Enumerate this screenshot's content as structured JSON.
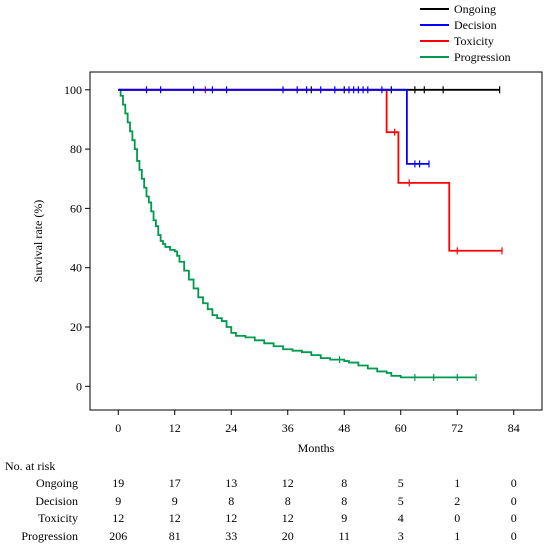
{
  "chart_data": {
    "type": "line",
    "subtype": "kaplan-meier",
    "title": "",
    "xlabel": "Months",
    "ylabel": "Survival rate (%)",
    "xlim": [
      -6,
      90
    ],
    "ylim": [
      -8,
      106
    ],
    "xticks": [
      0,
      12,
      24,
      36,
      48,
      60,
      72,
      84
    ],
    "yticks": [
      0,
      20,
      40,
      60,
      80,
      100
    ],
    "legend_position": "top-right",
    "series": [
      {
        "name": "Ongoing",
        "color": "#000000",
        "steps": [
          [
            0,
            100
          ],
          [
            81,
            100
          ]
        ],
        "censored": [
          [
            41,
            100
          ],
          [
            48,
            100
          ],
          [
            58,
            100
          ],
          [
            63,
            100
          ],
          [
            65,
            100
          ],
          [
            69,
            100
          ],
          [
            81,
            100
          ]
        ]
      },
      {
        "name": "Decision",
        "color": "#0000ff",
        "steps": [
          [
            0,
            100
          ],
          [
            61.3,
            100
          ],
          [
            61.3,
            75
          ],
          [
            66,
            75
          ]
        ],
        "censored": [
          [
            6,
            100
          ],
          [
            9,
            100
          ],
          [
            16,
            100
          ],
          [
            20,
            100
          ],
          [
            23,
            100
          ],
          [
            35,
            100
          ],
          [
            38,
            100
          ],
          [
            40,
            100
          ],
          [
            43,
            100
          ],
          [
            46,
            100
          ],
          [
            49,
            100
          ],
          [
            50,
            100
          ],
          [
            51,
            100
          ],
          [
            52,
            100
          ],
          [
            53,
            100
          ],
          [
            56,
            100
          ],
          [
            63,
            75
          ],
          [
            64,
            75
          ],
          [
            66,
            75
          ]
        ]
      },
      {
        "name": "Toxicity",
        "color": "#ff0000",
        "steps": [
          [
            0,
            100
          ],
          [
            57,
            100
          ],
          [
            57,
            85.7
          ],
          [
            59.5,
            85.7
          ],
          [
            59.5,
            68.6
          ],
          [
            70.3,
            68.6
          ],
          [
            70.3,
            45.7
          ],
          [
            81.5,
            45.7
          ]
        ],
        "censored": [
          [
            18.5,
            100
          ],
          [
            58.7,
            85.7
          ],
          [
            61.8,
            68.6
          ],
          [
            72,
            45.7
          ],
          [
            81.5,
            45.7
          ]
        ]
      },
      {
        "name": "Progression",
        "color": "#009a4e",
        "steps": [
          [
            0,
            100
          ],
          [
            0.5,
            98
          ],
          [
            1,
            95
          ],
          [
            1.5,
            92
          ],
          [
            2,
            89
          ],
          [
            2.5,
            86
          ],
          [
            3,
            83
          ],
          [
            3.5,
            80
          ],
          [
            4,
            76
          ],
          [
            4.5,
            73
          ],
          [
            5,
            70
          ],
          [
            5.5,
            67
          ],
          [
            6,
            64
          ],
          [
            6.5,
            62
          ],
          [
            7,
            59
          ],
          [
            7.5,
            56
          ],
          [
            8,
            54
          ],
          [
            8.5,
            51
          ],
          [
            9,
            49
          ],
          [
            9.5,
            48
          ],
          [
            10,
            47
          ],
          [
            11,
            46
          ],
          [
            12,
            45.5
          ],
          [
            12.5,
            44
          ],
          [
            13,
            42
          ],
          [
            14,
            39
          ],
          [
            15,
            36
          ],
          [
            16,
            33
          ],
          [
            17,
            30
          ],
          [
            18,
            28
          ],
          [
            19,
            26
          ],
          [
            20,
            24
          ],
          [
            21,
            23
          ],
          [
            22,
            22
          ],
          [
            23,
            20
          ],
          [
            24,
            18
          ],
          [
            25,
            17
          ],
          [
            27,
            16.5
          ],
          [
            29,
            15.5
          ],
          [
            31,
            14.5
          ],
          [
            33,
            13.5
          ],
          [
            35,
            12.5
          ],
          [
            37,
            12
          ],
          [
            39,
            11.5
          ],
          [
            41,
            10.5
          ],
          [
            43,
            9.5
          ],
          [
            45,
            9
          ],
          [
            47,
            9
          ],
          [
            48,
            8.5
          ],
          [
            49,
            8
          ],
          [
            51,
            7
          ],
          [
            53,
            6
          ],
          [
            55,
            5
          ],
          [
            57,
            4.5
          ],
          [
            58,
            3.5
          ],
          [
            60,
            3
          ],
          [
            63,
            3
          ],
          [
            76,
            3
          ]
        ],
        "censored": [
          [
            47,
            9
          ],
          [
            63,
            3
          ],
          [
            67,
            3
          ],
          [
            72,
            3
          ],
          [
            76,
            3
          ]
        ]
      }
    ]
  },
  "risk_table": {
    "title": "No. at risk",
    "times": [
      0,
      12,
      24,
      36,
      48,
      60,
      72,
      84
    ],
    "rows": [
      {
        "label": "Ongoing",
        "values": [
          "19",
          "17",
          "13",
          "12",
          "8",
          "5",
          "1",
          "0"
        ]
      },
      {
        "label": "Decision",
        "values": [
          "9",
          "9",
          "8",
          "8",
          "8",
          "5",
          "2",
          "0"
        ]
      },
      {
        "label": "Toxicity",
        "values": [
          "12",
          "12",
          "12",
          "12",
          "9",
          "4",
          "0",
          "0"
        ]
      },
      {
        "label": "Progression",
        "values": [
          "206",
          "81",
          "33",
          "20",
          "11",
          "3",
          "1",
          "0"
        ]
      }
    ]
  }
}
